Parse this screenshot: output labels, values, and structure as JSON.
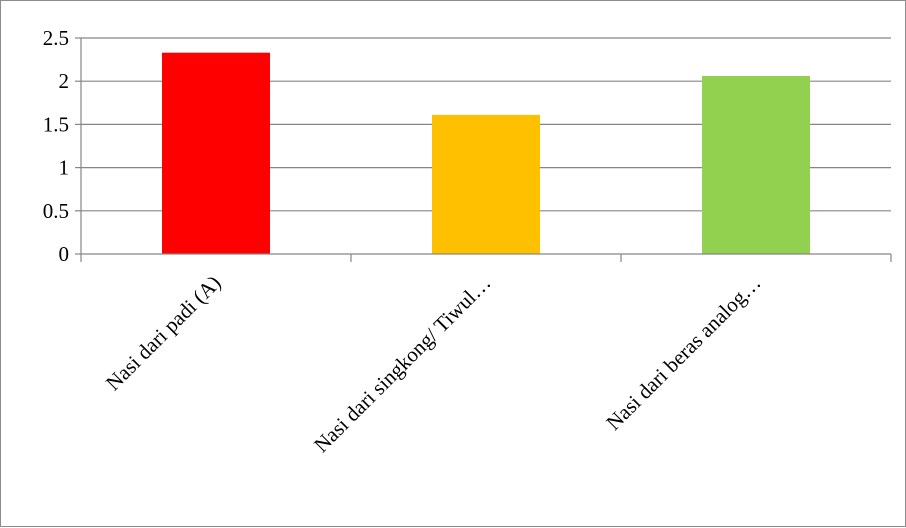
{
  "chart_data": {
    "type": "bar",
    "categories": [
      "Nasi dari padi (A)",
      "Nasi dari singkong/ Tiwul…",
      "Nasi dari beras analog…"
    ],
    "values": [
      2.33,
      1.61,
      2.06
    ],
    "colors": [
      "#ff0000",
      "#ffc000",
      "#92d050"
    ],
    "ylim": [
      0,
      2.5
    ],
    "yticks": [
      "0",
      "0.5",
      "1",
      "1.5",
      "2",
      "2.5"
    ],
    "grid": true,
    "legend": "none",
    "title": "",
    "xlabel": "",
    "ylabel": ""
  }
}
